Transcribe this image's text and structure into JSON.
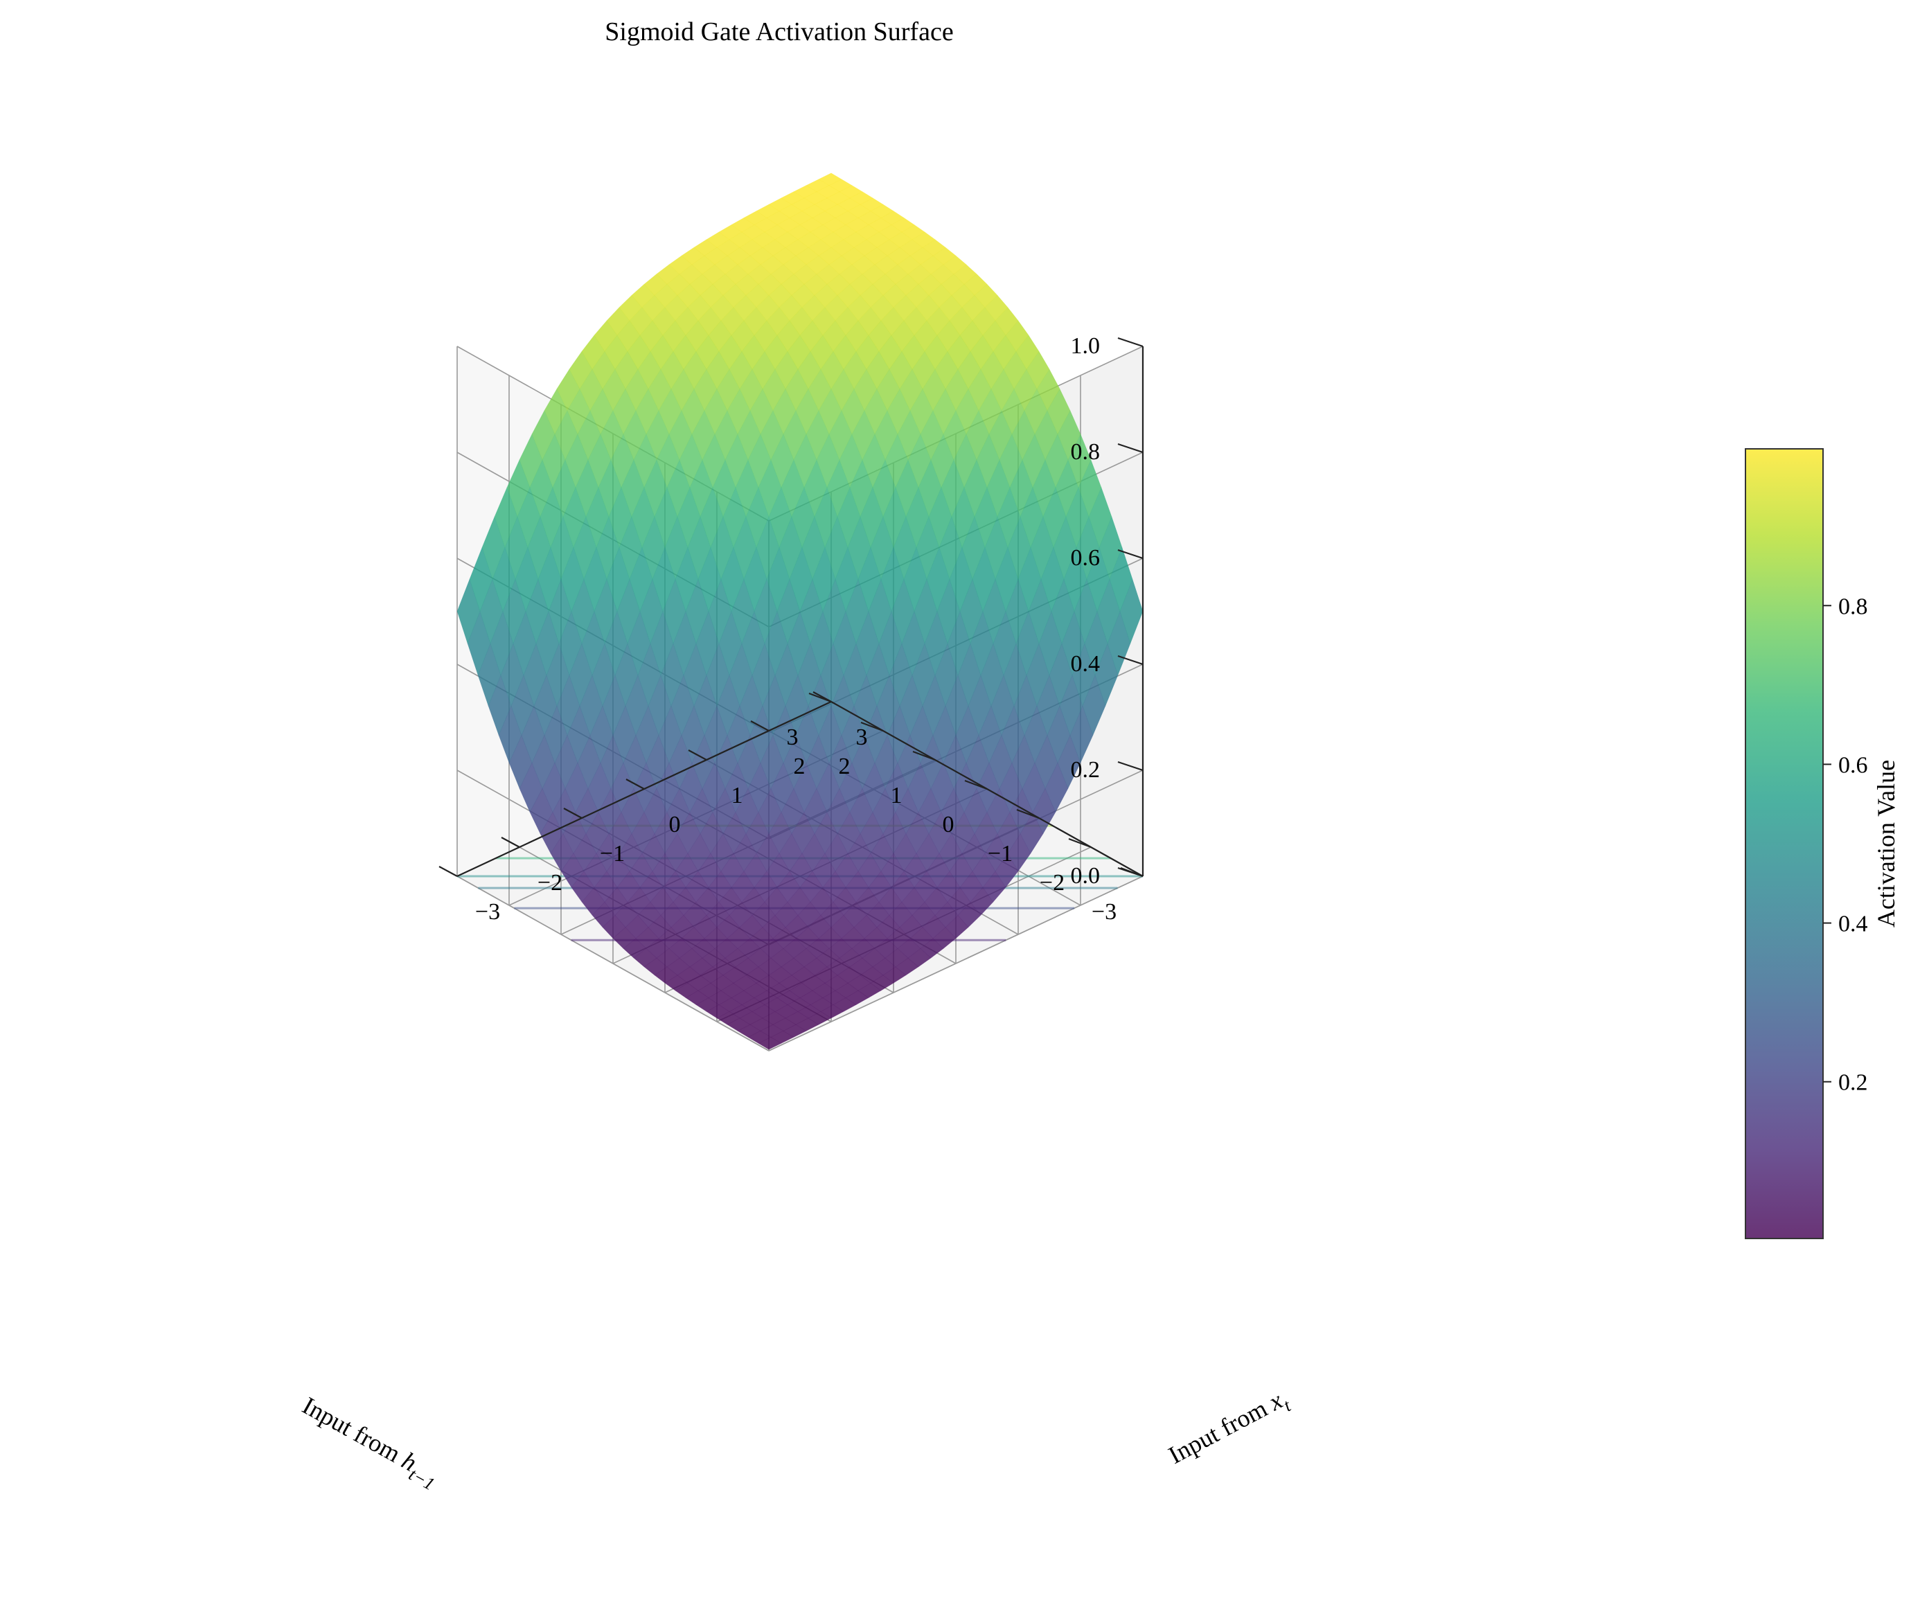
{
  "chart_data": {
    "type": "surface3d",
    "title": "Sigmoid Gate Activation Surface",
    "xlabel": "Input from h_{t-1}",
    "xlabel_parts": [
      "Input from ",
      "h",
      "t−1"
    ],
    "ylabel": "Input from x_t",
    "ylabel_parts": [
      "Input from ",
      "x",
      "t"
    ],
    "zlabel": "",
    "colorbar_label": "Activation Value",
    "colormap": "viridis",
    "colormap_stops": [
      "#440154",
      "#482878",
      "#3e4989",
      "#31688e",
      "#26828e",
      "#1f9e89",
      "#35b779",
      "#6ece58",
      "#b5de2b",
      "#fde725"
    ],
    "x_ticks": [
      "−3",
      "−2",
      "−1",
      "0",
      "1",
      "2",
      "3"
    ],
    "y_ticks": [
      "−3",
      "−2",
      "−1",
      "0",
      "1",
      "2",
      "3"
    ],
    "z_ticks": [
      "0.0",
      "0.2",
      "0.4",
      "0.6",
      "0.8",
      "1.0"
    ],
    "colorbar_ticks": [
      "0.2",
      "0.4",
      "0.6",
      "0.8"
    ],
    "colorbar_tick_values": [
      0.2,
      0.4,
      0.6,
      0.8
    ],
    "xlim": [
      -3,
      3
    ],
    "ylim": [
      -3,
      3
    ],
    "zlim": [
      0,
      1
    ],
    "colorbar_range": [
      0.0025,
      0.9975
    ],
    "function": "sigmoid(x_t + h_{t-1})",
    "grid_resolution": 30,
    "contour_levels": [
      0.1,
      0.25,
      0.4,
      0.5,
      0.65,
      0.85
    ],
    "grid": true,
    "surface_alpha": 0.8,
    "contour_alpha": 0.5,
    "view": {
      "elevation_deg": 20,
      "azimuth_deg": 45
    }
  }
}
